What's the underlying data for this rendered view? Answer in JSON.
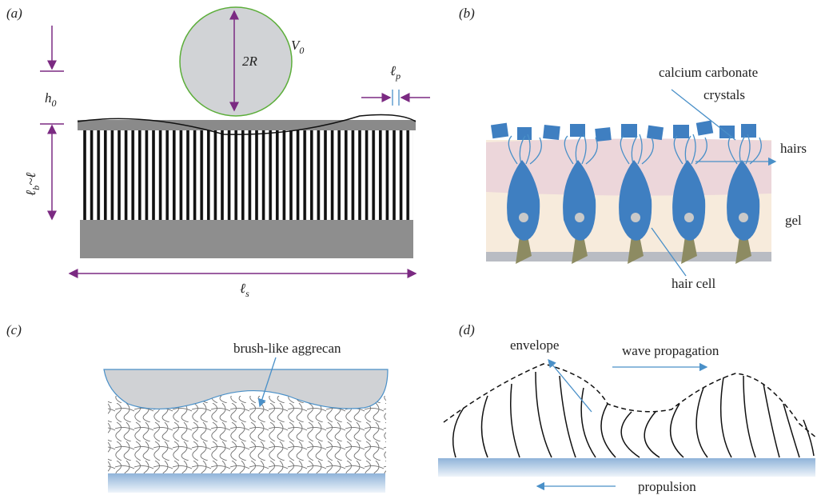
{
  "panels": [
    {
      "label": "(a)",
      "texts": [
        {
          "main": "V",
          "sub": "0"
        },
        {
          "main": "2R",
          "sub": ""
        },
        {
          "main": "h",
          "sub": "0"
        },
        {
          "main": "ℓ",
          "sub": "p"
        },
        {
          "main": "ℓ",
          "sub": "b",
          "rest": "~ℓ"
        },
        {
          "main": "ℓ",
          "sub": "s"
        }
      ]
    },
    {
      "label": "(b)",
      "crystals": [
        "calcium carbonate",
        "crystals"
      ],
      "hairs": "hairs",
      "gel": "gel",
      "cell": "hair cell"
    },
    {
      "label": "(c)",
      "annotation": "brush-like aggrecan"
    },
    {
      "label": "(d)",
      "envelope": "envelope",
      "wave": "wave propagation",
      "propulsion": "propulsion"
    }
  ]
}
